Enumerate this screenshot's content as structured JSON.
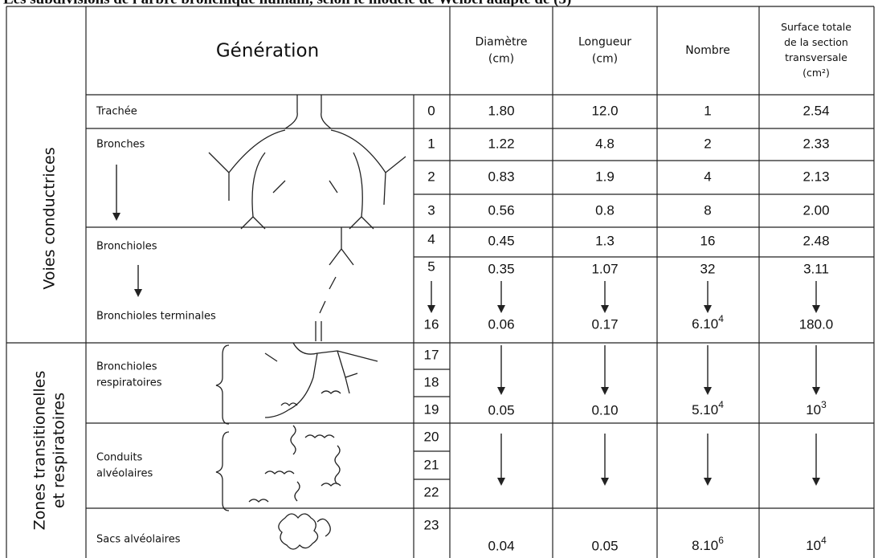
{
  "title": "Les subdivisions de l'arbre bronchique humain, selon le modèle de Weibel adapté de (5)",
  "header": {
    "generation": "Génération",
    "columns": [
      [
        "Diamètre",
        "(cm)"
      ],
      [
        "Longueur",
        "(cm)"
      ],
      [
        "Nombre"
      ],
      [
        "Surface totale",
        "de la section",
        "transversale",
        "(cm²)"
      ]
    ]
  },
  "groups": [
    {
      "label": [
        "Voies conductrices"
      ]
    },
    {
      "label": [
        "Zones transitionelles",
        "et respiratoires"
      ]
    }
  ],
  "sections": [
    {
      "labels": [
        [
          "Trachée"
        ]
      ]
    },
    {
      "labels": [
        [
          "Bronches"
        ]
      ]
    },
    {
      "labels": [
        [
          "Bronchioles"
        ],
        [
          "Bronchioles terminales"
        ]
      ]
    },
    {
      "labels": [
        [
          "Bronchioles",
          "respiratoires"
        ]
      ]
    },
    {
      "labels": [
        [
          "Conduits",
          "alvéolaires"
        ]
      ]
    },
    {
      "labels": [
        [
          "Sacs alvéolaires"
        ]
      ]
    }
  ],
  "generations": [
    "0",
    "1",
    "2",
    "3",
    "4",
    "5",
    "16",
    "17",
    "18",
    "19",
    "20",
    "21",
    "22",
    "23"
  ],
  "measures": [
    [
      "1.80",
      "12.0",
      "1",
      "2.54"
    ],
    [
      "1.22",
      "4.8",
      "2",
      "2.33"
    ],
    [
      "0.83",
      "1.9",
      "4",
      "2.13"
    ],
    [
      "0.56",
      "0.8",
      "8",
      "2.00"
    ],
    [
      "0.45",
      "1.3",
      "16",
      "2.48"
    ],
    [
      "0.35",
      "1.07",
      "32",
      "3.11"
    ],
    [
      "0.06",
      "0.17",
      {
        "text": "6.10",
        "sup": "4"
      },
      "180.0"
    ],
    [
      "0.05",
      "0.10",
      {
        "text": "5.10",
        "sup": "4"
      },
      {
        "text": "10",
        "sup": "3"
      }
    ],
    [
      "0.04",
      "0.05",
      {
        "text": "8.10",
        "sup": "6"
      },
      {
        "text": "10",
        "sup": "4"
      }
    ]
  ]
}
